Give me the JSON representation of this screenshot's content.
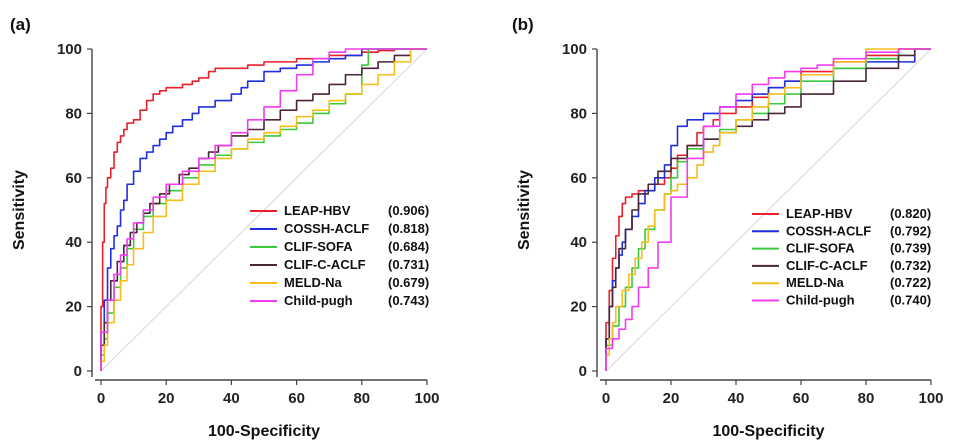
{
  "chart_data": [
    {
      "type": "line",
      "panel_label": "(a)",
      "xlabel": "100-Specificity",
      "ylabel": "Sensitivity",
      "xlim": [
        0,
        100
      ],
      "ylim": [
        0,
        100
      ],
      "xticks": [
        "0",
        "20",
        "40",
        "60",
        "80",
        "100"
      ],
      "yticks": [
        "0",
        "20",
        "40",
        "60",
        "80",
        "100"
      ],
      "legend_position": "lower-right",
      "series": [
        {
          "name": "LEAP-HBV",
          "auc": "(0.906)",
          "color": "#e8202a",
          "x": [
            0,
            0.5,
            1,
            1.5,
            2,
            3,
            4,
            5,
            6,
            7,
            8,
            10,
            12,
            14,
            16,
            18,
            20,
            25,
            28,
            30,
            33,
            35,
            40,
            45,
            50,
            60,
            70,
            80,
            85,
            90,
            100
          ],
          "y": [
            0,
            20,
            40,
            52,
            57,
            60,
            63,
            68,
            71,
            73,
            75,
            77,
            78,
            81,
            84,
            86,
            87,
            88,
            89,
            90,
            91,
            93,
            94,
            94,
            95,
            96,
            97,
            98,
            99,
            99.5,
            100
          ]
        },
        {
          "name": "COSSH-ACLF",
          "auc": "(0.818)",
          "color": "#1f2ee0",
          "x": [
            0,
            1,
            2,
            3,
            4,
            5,
            6,
            7,
            8,
            10,
            12,
            14,
            16,
            18,
            20,
            22,
            25,
            28,
            30,
            35,
            40,
            43,
            45,
            50,
            55,
            60,
            65,
            70,
            75,
            80,
            83,
            90,
            100
          ],
          "y": [
            0,
            12,
            22,
            32,
            38,
            42,
            45,
            50,
            53,
            58,
            62,
            66,
            68,
            70,
            72,
            74,
            76,
            78,
            80,
            82,
            84,
            86,
            88,
            90,
            93,
            94,
            95,
            96,
            97,
            98,
            100,
            100,
            100
          ]
        },
        {
          "name": "CLIF-SOFA",
          "auc": "(0.684)",
          "color": "#3cc93c",
          "x": [
            0,
            1,
            2,
            4,
            6,
            8,
            10,
            13,
            16,
            20,
            25,
            30,
            35,
            40,
            45,
            50,
            55,
            60,
            65,
            70,
            75,
            80,
            82,
            83,
            90,
            100
          ],
          "y": [
            0,
            5,
            10,
            18,
            26,
            32,
            38,
            44,
            48,
            52,
            56,
            60,
            64,
            67,
            69,
            71,
            73,
            75,
            77,
            80,
            83,
            86,
            95,
            100,
            100,
            100
          ]
        },
        {
          "name": "CLIF-C-ACLF",
          "auc": "(0.731)",
          "color": "#4a2638",
          "x": [
            0,
            1,
            2,
            3,
            5,
            7,
            9,
            11,
            13,
            15,
            18,
            21,
            24,
            27,
            30,
            33,
            36,
            40,
            45,
            50,
            55,
            60,
            65,
            70,
            75,
            80,
            85,
            90,
            95,
            100
          ],
          "y": [
            0,
            8,
            15,
            22,
            28,
            34,
            39,
            43,
            46,
            49,
            52,
            55,
            58,
            61,
            63,
            66,
            68,
            70,
            73,
            75,
            78,
            81,
            84,
            86,
            89,
            92,
            94,
            96,
            98,
            100
          ]
        },
        {
          "name": "MELD-Na",
          "auc": "(0.679)",
          "color": "#f4be1c",
          "x": [
            0,
            1,
            2,
            4,
            6,
            8,
            10,
            13,
            16,
            20,
            25,
            30,
            35,
            40,
            45,
            50,
            55,
            60,
            65,
            70,
            75,
            80,
            85,
            90,
            95,
            100
          ],
          "y": [
            0,
            3,
            8,
            15,
            22,
            28,
            33,
            38,
            43,
            48,
            53,
            58,
            62,
            66,
            69,
            72,
            74,
            76,
            79,
            81,
            84,
            86,
            89,
            92,
            96,
            100
          ]
        },
        {
          "name": "Child-pugh",
          "auc": "(0.743)",
          "color": "#f23cf0",
          "x": [
            0,
            2,
            4,
            6,
            8,
            10,
            13,
            16,
            20,
            25,
            30,
            35,
            40,
            45,
            50,
            55,
            60,
            65,
            70,
            75,
            80,
            85,
            90,
            100
          ],
          "y": [
            0,
            12,
            22,
            30,
            36,
            41,
            46,
            50,
            54,
            58,
            62,
            66,
            70,
            74,
            78,
            82,
            87,
            92,
            97,
            99,
            100,
            100,
            100,
            100
          ]
        }
      ]
    },
    {
      "type": "line",
      "panel_label": "(b)",
      "xlabel": "100-Specificity",
      "ylabel": "Sensitivity",
      "xlim": [
        0,
        100
      ],
      "ylim": [
        0,
        100
      ],
      "xticks": [
        "0",
        "20",
        "40",
        "60",
        "80",
        "100"
      ],
      "yticks": [
        "0",
        "20",
        "40",
        "60",
        "80",
        "100"
      ],
      "legend_position": "lower-right",
      "series": [
        {
          "name": "LEAP-HBV",
          "auc": "(0.820)",
          "color": "#e8202a",
          "x": [
            0,
            1,
            2,
            3,
            4,
            5,
            6,
            8,
            10,
            12,
            15,
            18,
            20,
            22,
            25,
            28,
            30,
            33,
            35,
            40,
            45,
            50,
            55,
            60,
            70,
            80,
            90,
            100
          ],
          "y": [
            0,
            15,
            25,
            35,
            42,
            48,
            52,
            54,
            55,
            56,
            56,
            58,
            60,
            63,
            67,
            70,
            74,
            76,
            78,
            80,
            82,
            85,
            88,
            90,
            93,
            96,
            98,
            100
          ]
        },
        {
          "name": "COSSH-ACLF",
          "auc": "(0.792)",
          "color": "#1f2ee0",
          "x": [
            0,
            1,
            2,
            3,
            4,
            5,
            6,
            8,
            10,
            12,
            15,
            18,
            20,
            22,
            25,
            30,
            35,
            40,
            45,
            50,
            55,
            60,
            70,
            80,
            90,
            95,
            100
          ],
          "y": [
            0,
            10,
            20,
            28,
            32,
            36,
            40,
            44,
            48,
            52,
            56,
            60,
            64,
            70,
            76,
            78,
            80,
            82,
            84,
            86,
            88,
            90,
            92,
            94,
            96,
            96,
            100
          ]
        },
        {
          "name": "CLIF-SOFA",
          "auc": "(0.739)",
          "color": "#3cc93c",
          "x": [
            0,
            2,
            4,
            6,
            8,
            10,
            12,
            15,
            18,
            20,
            22,
            25,
            30,
            35,
            40,
            45,
            50,
            55,
            60,
            70,
            80,
            90,
            100
          ],
          "y": [
            0,
            8,
            14,
            20,
            26,
            32,
            38,
            44,
            50,
            55,
            60,
            65,
            69,
            72,
            75,
            78,
            80,
            83,
            86,
            90,
            94,
            97,
            100
          ]
        },
        {
          "name": "CLIF-C-ACLF",
          "auc": "(0.732)",
          "color": "#4a2638",
          "x": [
            0,
            1,
            2,
            3,
            4,
            6,
            8,
            10,
            13,
            16,
            20,
            25,
            30,
            35,
            40,
            45,
            50,
            55,
            60,
            70,
            80,
            90,
            95,
            100
          ],
          "y": [
            0,
            10,
            20,
            26,
            32,
            38,
            44,
            50,
            55,
            58,
            62,
            66,
            70,
            72,
            74,
            76,
            78,
            80,
            82,
            86,
            90,
            94,
            98,
            100
          ]
        },
        {
          "name": "MELD-Na",
          "auc": "(0.722)",
          "color": "#f4be1c",
          "x": [
            0,
            1,
            2,
            3,
            5,
            7,
            9,
            11,
            13,
            15,
            18,
            20,
            22,
            25,
            28,
            30,
            33,
            35,
            40,
            45,
            50,
            55,
            60,
            70,
            80,
            90,
            100
          ],
          "y": [
            0,
            5,
            10,
            15,
            20,
            25,
            30,
            35,
            40,
            45,
            50,
            55,
            56,
            58,
            60,
            64,
            68,
            70,
            74,
            78,
            82,
            86,
            88,
            92,
            96,
            100,
            100
          ]
        },
        {
          "name": "Child-pugh",
          "auc": "(0.740)",
          "color": "#f23cf0",
          "x": [
            0,
            2,
            4,
            6,
            8,
            10,
            13,
            16,
            20,
            25,
            30,
            35,
            40,
            45,
            50,
            55,
            60,
            65,
            70,
            80,
            90,
            100
          ],
          "y": [
            0,
            7,
            10,
            13,
            16,
            20,
            26,
            32,
            40,
            54,
            66,
            76,
            82,
            86,
            89,
            91,
            93,
            94,
            95,
            97,
            99,
            100
          ]
        }
      ]
    }
  ]
}
